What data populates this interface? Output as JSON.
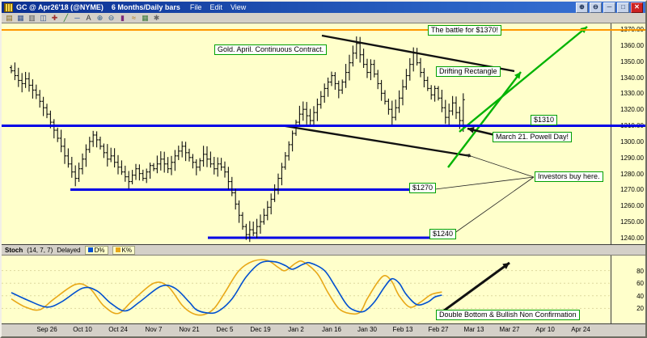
{
  "window": {
    "title": "GC @ Apr26'18 (@NYME)",
    "period": "6 Months/Daily bars",
    "menu": [
      "File",
      "Edit",
      "View"
    ],
    "buttons": [
      {
        "name": "zoom-in-icon",
        "glyph": "⊕"
      },
      {
        "name": "zoom-out-icon",
        "glyph": "⊖"
      },
      {
        "name": "minimize-icon",
        "glyph": "─"
      },
      {
        "name": "maximize-icon",
        "glyph": "□"
      },
      {
        "name": "close-icon",
        "glyph": "✕"
      }
    ]
  },
  "toolbar": {
    "icons": [
      {
        "name": "open-chart-icon",
        "glyph": "▤",
        "color": "#8a6d1a"
      },
      {
        "name": "save-icon",
        "glyph": "▦",
        "color": "#31518f"
      },
      {
        "name": "print-icon",
        "glyph": "▥",
        "color": "#555555"
      },
      {
        "name": "new-window-icon",
        "glyph": "◫",
        "color": "#31518f"
      },
      {
        "name": "crosshair-tool-icon",
        "glyph": "✚",
        "color": "#a03030"
      },
      {
        "name": "trendline-tool-icon",
        "glyph": "╱",
        "color": "#1f7a1f"
      },
      {
        "name": "horizontal-line-tool-icon",
        "glyph": "─",
        "color": "#1f4f9f"
      },
      {
        "name": "text-tool-icon",
        "glyph": "A",
        "color": "#333333"
      },
      {
        "name": "zoom-in-tool-icon",
        "glyph": "⊕",
        "color": "#2a5a8a"
      },
      {
        "name": "zoom-out-tool-icon",
        "glyph": "⊖",
        "color": "#2a5a8a"
      },
      {
        "name": "bar-chart-type-icon",
        "glyph": "▮",
        "color": "#7a2a7a"
      },
      {
        "name": "indicator-icon",
        "glyph": "≈",
        "color": "#b07818"
      },
      {
        "name": "calendar-icon",
        "glyph": "▦",
        "color": "#3a7a3a"
      },
      {
        "name": "settings-icon",
        "glyph": "✱",
        "color": "#666666"
      }
    ]
  },
  "colors": {
    "chart_bg": "#ffffcb",
    "blue_line": "#0000e6",
    "orange_line": "#ff9900",
    "green_arrow": "#00b300",
    "annotation_border": "#00a000",
    "bar_color": "#101010",
    "stoch_d": "#0050d0",
    "stoch_k": "#e8a818"
  },
  "annotations": {
    "battle": "The battle for $1370!",
    "contract": "Gold. April. Continuous Contract.",
    "drifting": "Drifting Rectangle",
    "p1310": "$1310",
    "powell": "March 21. Powell Day!",
    "investors": "Investors buy here.",
    "p1270": "$1270",
    "p1240": "$1240",
    "stoch_note": "Double Bottom & Bullish Non Confirmation"
  },
  "chart_data": {
    "type": "ohlc-bars",
    "symbol": "GC @ Apr26'18 (@NYME)",
    "timeframe": "6 Months/Daily bars",
    "ylim": [
      1236,
      1373.5
    ],
    "price_ticks": [
      1240,
      1250,
      1260,
      1270,
      1280,
      1290,
      1300,
      1310,
      1320,
      1330,
      1340,
      1350,
      1360,
      1370
    ],
    "x_labels": [
      "Sep 26",
      "Oct 10",
      "Oct 24",
      "Nov 7",
      "Nov 21",
      "Dec 5",
      "Dec 19",
      "Jan 2",
      "Jan 16",
      "Jan 30",
      "Feb 13",
      "Feb 27",
      "Mar 13",
      "Mar 27",
      "Apr 10",
      "Apr 24"
    ],
    "bar_index_of_first_label": 10,
    "bars_per_label": 10,
    "closes": [
      1344,
      1341,
      1338,
      1336,
      1339,
      1335,
      1332,
      1329,
      1325,
      1321,
      1317,
      1312,
      1307,
      1302,
      1297,
      1291,
      1286,
      1281,
      1277,
      1283,
      1289,
      1295,
      1300,
      1304,
      1301,
      1297,
      1293,
      1289,
      1291,
      1287,
      1284,
      1281,
      1278,
      1275,
      1279,
      1283,
      1280,
      1277,
      1281,
      1285,
      1283,
      1286,
      1289,
      1286,
      1283,
      1287,
      1291,
      1294,
      1297,
      1293,
      1290,
      1287,
      1284,
      1288,
      1292,
      1289,
      1286,
      1283,
      1286,
      1284,
      1281,
      1275,
      1268,
      1261,
      1254,
      1247,
      1242,
      1245,
      1243,
      1247,
      1250,
      1254,
      1259,
      1264,
      1270,
      1277,
      1284,
      1291,
      1298,
      1305,
      1312,
      1317,
      1320,
      1316,
      1313,
      1318,
      1323,
      1328,
      1333,
      1337,
      1341,
      1336,
      1332,
      1337,
      1343,
      1349,
      1355,
      1361,
      1354,
      1348,
      1343,
      1348,
      1342,
      1336,
      1330,
      1325,
      1320,
      1315,
      1321,
      1327,
      1334,
      1341,
      1348,
      1355,
      1349,
      1343,
      1338,
      1333,
      1329,
      1333,
      1327,
      1321,
      1315,
      1319,
      1324,
      1318,
      1313,
      1326
    ],
    "last_bar": {
      "high": 1330,
      "low": 1306
    },
    "levels": {
      "orange_resistance": 1369.5,
      "major_support": 1310,
      "support_mid": 1270,
      "support_mid_span": [
        85,
        520
      ],
      "support_low": 1240,
      "support_low_span": [
        255,
        545
      ]
    },
    "stoch": {
      "label": "Stoch",
      "params": "(14, 7, 7)",
      "delayed": "Delayed",
      "ticks": [
        20,
        40,
        60,
        80
      ],
      "legend": [
        {
          "name": "D%",
          "color": "#0050d0"
        },
        {
          "name": "K%",
          "color": "#e8a818"
        }
      ],
      "d_points": [
        [
          0,
          45
        ],
        [
          5,
          32
        ],
        [
          10,
          22
        ],
        [
          14,
          30
        ],
        [
          20,
          52
        ],
        [
          24,
          48
        ],
        [
          28,
          28
        ],
        [
          32,
          16
        ],
        [
          36,
          30
        ],
        [
          42,
          55
        ],
        [
          46,
          52
        ],
        [
          50,
          30
        ],
        [
          52,
          18
        ],
        [
          55,
          13
        ],
        [
          58,
          15
        ],
        [
          62,
          35
        ],
        [
          66,
          70
        ],
        [
          70,
          92
        ],
        [
          74,
          94
        ],
        [
          77,
          88
        ],
        [
          79,
          82
        ],
        [
          82,
          90
        ],
        [
          84,
          92
        ],
        [
          88,
          80
        ],
        [
          91,
          55
        ],
        [
          94,
          28
        ],
        [
          96,
          18
        ],
        [
          99,
          15
        ],
        [
          102,
          30
        ],
        [
          105,
          55
        ],
        [
          107,
          67
        ],
        [
          109,
          60
        ],
        [
          111,
          42
        ],
        [
          114,
          26
        ],
        [
          117,
          30
        ],
        [
          119,
          38
        ],
        [
          121,
          41
        ]
      ],
      "k_points": [
        [
          0,
          35
        ],
        [
          4,
          22
        ],
        [
          8,
          18
        ],
        [
          12,
          35
        ],
        [
          18,
          58
        ],
        [
          22,
          52
        ],
        [
          26,
          24
        ],
        [
          30,
          12
        ],
        [
          34,
          32
        ],
        [
          40,
          60
        ],
        [
          44,
          55
        ],
        [
          48,
          25
        ],
        [
          51,
          12
        ],
        [
          54,
          10
        ],
        [
          57,
          20
        ],
        [
          60,
          45
        ],
        [
          64,
          80
        ],
        [
          68,
          95
        ],
        [
          72,
          96
        ],
        [
          75,
          85
        ],
        [
          77,
          80
        ],
        [
          80,
          92
        ],
        [
          82,
          94
        ],
        [
          86,
          75
        ],
        [
          89,
          45
        ],
        [
          92,
          20
        ],
        [
          95,
          12
        ],
        [
          98,
          14
        ],
        [
          100,
          35
        ],
        [
          103,
          62
        ],
        [
          105,
          72
        ],
        [
          107,
          62
        ],
        [
          109,
          40
        ],
        [
          112,
          22
        ],
        [
          115,
          30
        ],
        [
          118,
          42
        ],
        [
          121,
          46
        ]
      ]
    }
  }
}
